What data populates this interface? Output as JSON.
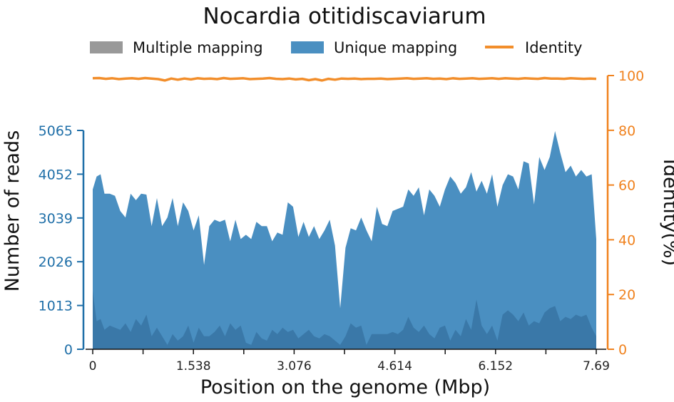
{
  "chart_data": {
    "type": "area",
    "title": "Nocardia otitidiscaviarum",
    "xlabel": "Position on the genome (Mbp)",
    "ylabel_left": "Number of reads",
    "ylabel_right": "Identity(%)",
    "x_tick_labels": [
      "0",
      "1.538",
      "3.076",
      "4.614",
      "6.152",
      "7.69"
    ],
    "x_range": [
      0,
      7.69
    ],
    "y_left_tick_labels": [
      "0",
      "1013",
      "2026",
      "3039",
      "4052",
      "5065"
    ],
    "y_left_range": [
      0,
      5065
    ],
    "y_right_tick_labels": [
      "0",
      "20",
      "40",
      "60",
      "80",
      "100"
    ],
    "y_right_range": [
      0,
      100
    ],
    "legend": [
      {
        "name": "Multiple mapping",
        "color": "#999999"
      },
      {
        "name": "Unique mapping",
        "color": "#4a8fc1"
      },
      {
        "name": "Identity",
        "color": "#f28e2b"
      }
    ],
    "legend_position": "top-center",
    "colors": {
      "left_axis": "#1f6fa8",
      "right_axis": "#f0821e",
      "unique": "#4a8fc1",
      "multiple": "#3a78a8",
      "identity": "#f28e2b"
    },
    "series": [
      {
        "name": "Unique mapping",
        "x": [
          0.0,
          0.06,
          0.12,
          0.18,
          0.26,
          0.34,
          0.42,
          0.5,
          0.58,
          0.66,
          0.74,
          0.82,
          0.9,
          0.98,
          1.06,
          1.14,
          1.22,
          1.3,
          1.38,
          1.46,
          1.54,
          1.62,
          1.7,
          1.78,
          1.86,
          1.94,
          2.02,
          2.1,
          2.18,
          2.26,
          2.34,
          2.42,
          2.5,
          2.58,
          2.66,
          2.74,
          2.82,
          2.9,
          2.98,
          3.06,
          3.14,
          3.22,
          3.3,
          3.38,
          3.46,
          3.54,
          3.62,
          3.7,
          3.78,
          3.86,
          3.94,
          4.02,
          4.1,
          4.18,
          4.26,
          4.34,
          4.42,
          4.5,
          4.58,
          4.66,
          4.74,
          4.82,
          4.9,
          4.98,
          5.06,
          5.14,
          5.22,
          5.3,
          5.38,
          5.46,
          5.54,
          5.62,
          5.7,
          5.78,
          5.86,
          5.94,
          6.02,
          6.1,
          6.18,
          6.26,
          6.34,
          6.42,
          6.5,
          6.58,
          6.66,
          6.74,
          6.82,
          6.9,
          6.98,
          7.06,
          7.14,
          7.22,
          7.3,
          7.38,
          7.46,
          7.54,
          7.62,
          7.69
        ],
        "values": [
          3700,
          4000,
          4050,
          3600,
          3600,
          3550,
          3200,
          3050,
          3600,
          3450,
          3600,
          3580,
          2850,
          3500,
          2850,
          3050,
          3500,
          2850,
          3400,
          3200,
          2750,
          3100,
          1950,
          2850,
          3000,
          2950,
          3000,
          2500,
          3000,
          2550,
          2650,
          2550,
          2950,
          2850,
          2850,
          2500,
          2700,
          2650,
          3400,
          3300,
          2600,
          2950,
          2600,
          2850,
          2550,
          2750,
          3000,
          2400,
          950,
          2350,
          2800,
          2750,
          3050,
          2750,
          2500,
          3300,
          2900,
          2850,
          3200,
          3250,
          3300,
          3700,
          3550,
          3750,
          3100,
          3700,
          3550,
          3300,
          3700,
          4000,
          3850,
          3600,
          3750,
          4100,
          3650,
          3900,
          3600,
          4050,
          3300,
          3800,
          4050,
          4000,
          3700,
          4350,
          4300,
          3350,
          4450,
          4150,
          4450,
          5050,
          4550,
          4100,
          4250,
          4000,
          4150,
          4000,
          4050,
          2550
        ],
        "color": "#4a8fc1"
      },
      {
        "name": "Multiple mapping",
        "x": [
          0.0,
          0.06,
          0.12,
          0.18,
          0.26,
          0.34,
          0.42,
          0.5,
          0.58,
          0.66,
          0.74,
          0.82,
          0.9,
          0.98,
          1.06,
          1.14,
          1.22,
          1.3,
          1.38,
          1.46,
          1.54,
          1.62,
          1.7,
          1.78,
          1.86,
          1.94,
          2.02,
          2.1,
          2.18,
          2.26,
          2.34,
          2.42,
          2.5,
          2.58,
          2.66,
          2.74,
          2.82,
          2.9,
          2.98,
          3.06,
          3.14,
          3.22,
          3.3,
          3.38,
          3.46,
          3.54,
          3.62,
          3.7,
          3.78,
          3.86,
          3.94,
          4.02,
          4.1,
          4.18,
          4.26,
          4.34,
          4.42,
          4.5,
          4.58,
          4.66,
          4.74,
          4.82,
          4.9,
          4.98,
          5.06,
          5.14,
          5.22,
          5.3,
          5.38,
          5.46,
          5.54,
          5.62,
          5.7,
          5.78,
          5.86,
          5.94,
          6.02,
          6.1,
          6.18,
          6.26,
          6.34,
          6.42,
          6.5,
          6.58,
          6.66,
          6.74,
          6.82,
          6.9,
          6.98,
          7.06,
          7.14,
          7.22,
          7.3,
          7.38,
          7.46,
          7.54,
          7.62,
          7.69
        ],
        "values": [
          1350,
          650,
          700,
          450,
          550,
          500,
          450,
          600,
          400,
          700,
          550,
          800,
          300,
          500,
          300,
          100,
          350,
          200,
          300,
          550,
          150,
          500,
          300,
          300,
          400,
          550,
          300,
          600,
          450,
          550,
          150,
          100,
          400,
          250,
          200,
          450,
          350,
          500,
          400,
          450,
          250,
          350,
          450,
          300,
          250,
          350,
          300,
          200,
          100,
          300,
          600,
          500,
          550,
          100,
          350,
          350,
          350,
          350,
          400,
          350,
          450,
          750,
          500,
          400,
          550,
          350,
          250,
          500,
          550,
          200,
          450,
          300,
          700,
          450,
          1150,
          550,
          350,
          550,
          200,
          800,
          900,
          800,
          650,
          850,
          550,
          650,
          600,
          850,
          950,
          1000,
          650,
          750,
          700,
          800,
          750,
          800,
          500,
          300
        ],
        "color": "#3a78a8"
      },
      {
        "name": "Identity",
        "x": [
          0.0,
          0.1,
          0.2,
          0.3,
          0.4,
          0.5,
          0.6,
          0.7,
          0.8,
          0.9,
          1.0,
          1.1,
          1.2,
          1.3,
          1.4,
          1.5,
          1.6,
          1.7,
          1.8,
          1.9,
          2.0,
          2.1,
          2.2,
          2.3,
          2.4,
          2.5,
          2.6,
          2.7,
          2.8,
          2.9,
          3.0,
          3.1,
          3.2,
          3.3,
          3.4,
          3.5,
          3.6,
          3.7,
          3.8,
          3.9,
          4.0,
          4.1,
          4.2,
          4.3,
          4.4,
          4.5,
          4.6,
          4.7,
          4.8,
          4.9,
          5.0,
          5.1,
          5.2,
          5.3,
          5.4,
          5.5,
          5.6,
          5.7,
          5.8,
          5.9,
          6.0,
          6.1,
          6.2,
          6.3,
          6.4,
          6.5,
          6.6,
          6.7,
          6.8,
          6.9,
          7.0,
          7.1,
          7.2,
          7.3,
          7.4,
          7.5,
          7.6,
          7.69
        ],
        "values": [
          99.0,
          99.1,
          98.8,
          99.0,
          98.7,
          98.9,
          99.0,
          98.8,
          99.1,
          98.9,
          98.7,
          98.2,
          98.9,
          98.5,
          98.9,
          98.6,
          99.0,
          98.8,
          98.9,
          98.7,
          99.1,
          98.8,
          98.9,
          99.0,
          98.7,
          98.8,
          98.9,
          99.1,
          98.8,
          98.7,
          98.9,
          98.6,
          98.8,
          98.3,
          98.7,
          98.2,
          98.8,
          98.5,
          98.9,
          98.8,
          98.9,
          98.7,
          98.8,
          98.8,
          98.9,
          98.7,
          98.8,
          98.9,
          99.0,
          98.8,
          98.9,
          99.0,
          98.8,
          98.9,
          98.7,
          99.0,
          98.8,
          98.9,
          99.0,
          98.8,
          98.9,
          99.0,
          98.8,
          99.0,
          98.9,
          98.8,
          99.0,
          98.9,
          98.8,
          99.1,
          98.9,
          98.9,
          98.8,
          99.0,
          98.9,
          98.8,
          98.9,
          98.8
        ],
        "color": "#f28e2b"
      }
    ]
  }
}
